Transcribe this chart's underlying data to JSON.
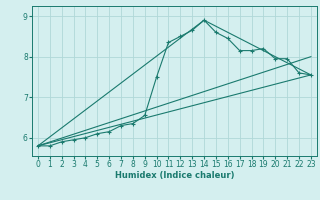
{
  "xlabel": "Humidex (Indice chaleur)",
  "background_color": "#d4efef",
  "grid_color": "#b0d8d8",
  "line_color": "#1a7a6e",
  "xlim": [
    -0.5,
    23.5
  ],
  "ylim": [
    5.55,
    9.25
  ],
  "yticks": [
    6,
    7,
    8,
    9
  ],
  "xticks": [
    0,
    1,
    2,
    3,
    4,
    5,
    6,
    7,
    8,
    9,
    10,
    11,
    12,
    13,
    14,
    15,
    16,
    17,
    18,
    19,
    20,
    21,
    22,
    23
  ],
  "main_x": [
    0,
    1,
    2,
    3,
    4,
    5,
    6,
    7,
    8,
    9,
    10,
    11,
    12,
    13,
    14,
    15,
    16,
    17,
    18,
    19,
    20,
    21,
    22,
    23
  ],
  "main_y": [
    5.8,
    5.8,
    5.9,
    5.95,
    6.0,
    6.1,
    6.15,
    6.3,
    6.35,
    6.55,
    7.5,
    8.35,
    8.5,
    8.65,
    8.9,
    8.6,
    8.45,
    8.15,
    8.15,
    8.2,
    7.95,
    7.95,
    7.6,
    7.55
  ],
  "line1_x": [
    0,
    23
  ],
  "line1_y": [
    5.8,
    7.55
  ],
  "line2_x": [
    0,
    14,
    23
  ],
  "line2_y": [
    5.8,
    8.9,
    7.55
  ],
  "line3_x": [
    0,
    23
  ],
  "line3_y": [
    5.8,
    8.0
  ]
}
